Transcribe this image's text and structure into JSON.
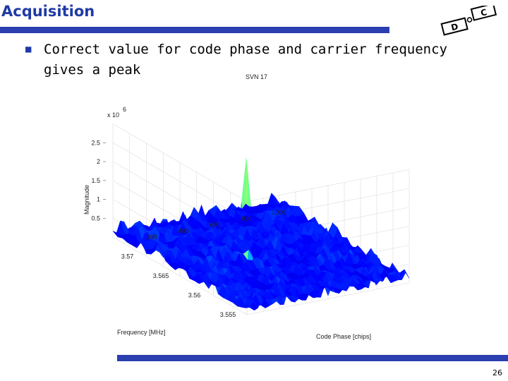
{
  "slide": {
    "title": "Acquisition",
    "bullet": "Correct value for code phase and carrier frequency gives a peak",
    "page_number": "26",
    "accent_color": "#2b3fb0"
  },
  "logo": {
    "glyphs": [
      "D",
      "C"
    ]
  },
  "chart_data": {
    "type": "surface",
    "title": "SVN 17",
    "xlabel": "Code Phase [chips]",
    "ylabel": "Frequency [MHz]",
    "zlabel": "Magnitude",
    "z_multiplier": "x 10",
    "z_exponent": "6",
    "x_ticks": [
      "200",
      "400",
      "600",
      "800",
      "1000"
    ],
    "y_ticks": [
      "3.555",
      "3.56",
      "3.565",
      "3.57"
    ],
    "z_ticks": [
      "0.5",
      "1",
      "1.5",
      "2",
      "2.5"
    ],
    "x_range": [
      0,
      1023
    ],
    "y_range": [
      3.553,
      3.573
    ],
    "z_range": [
      0,
      3000000
    ],
    "noise_floor": 300000,
    "peak": {
      "code_phase": 420,
      "frequency_mhz": 3.563,
      "magnitude": 2700000
    },
    "colormap": "jet",
    "grid": true
  }
}
